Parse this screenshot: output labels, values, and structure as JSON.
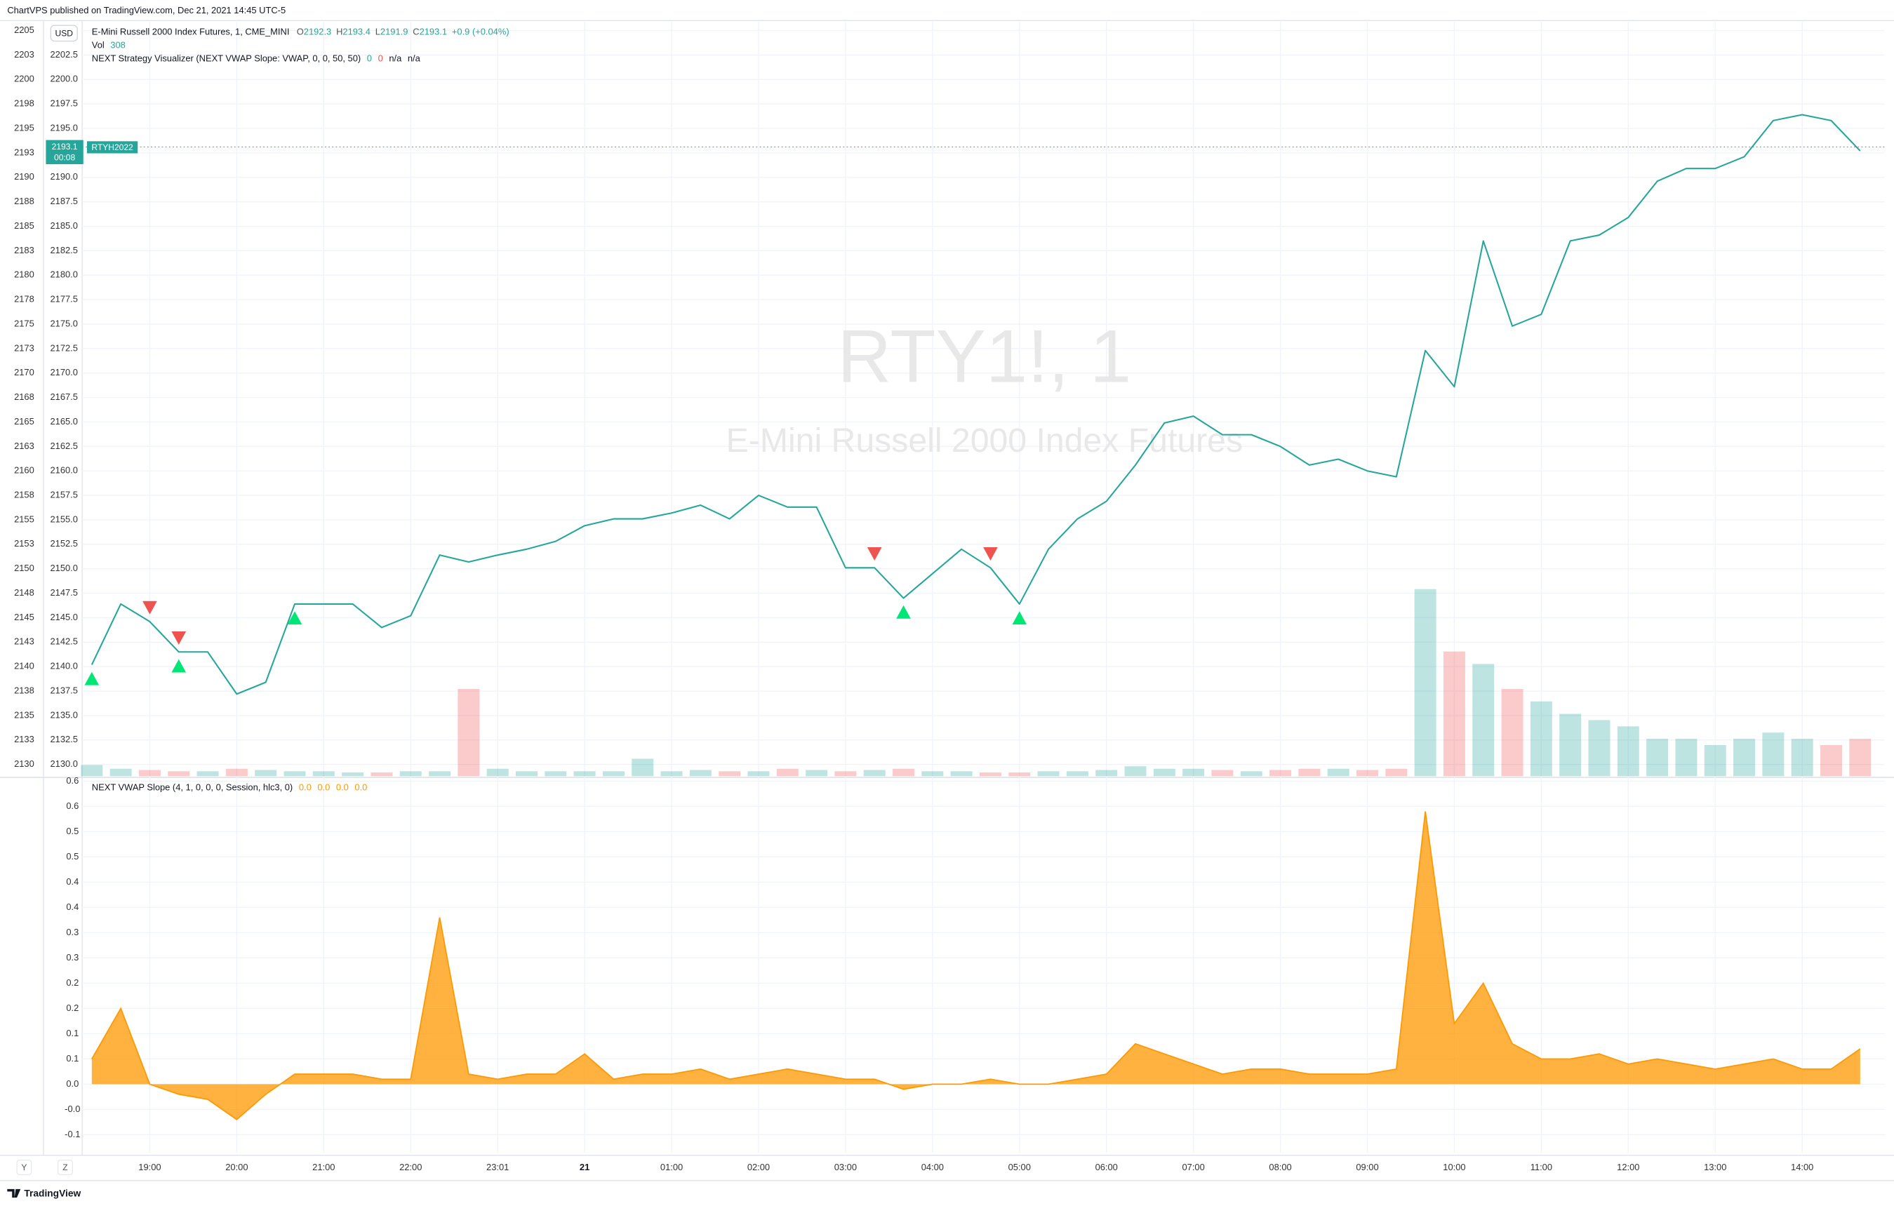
{
  "header": {
    "published": "ChartVPS published on TradingView.com, Dec 21, 2021 14:45 UTC-5"
  },
  "legend": {
    "symbol": "E-Mini Russell 2000 Index Futures, 1, CME_MINI",
    "ohlc": [
      {
        "key": "O",
        "value": 2192.3
      },
      {
        "key": "H",
        "value": 2193.4
      },
      {
        "key": "L",
        "value": 2191.9
      },
      {
        "key": "C",
        "value": 2193.1
      }
    ],
    "change": "+0.9 (+0.04%)",
    "volume_value": 308,
    "strategy": "NEXT Strategy Visualizer (NEXT VWAP Slope: VWAP, 0, 0, 50, 50)",
    "strategy_values": [
      0,
      0,
      "n/a",
      "n/a"
    ]
  },
  "currency": "USD",
  "countdown": "00:08",
  "contract": "RTYH2022",
  "watermark": {
    "symbol": "RTY1!, 1",
    "name": "E-Mini Russell 2000 Index Futures"
  },
  "chart_data": [
    {
      "type": "line",
      "categories": [
        null,
        null,
        "19:00",
        null,
        null,
        "20:00",
        null,
        null,
        "21:00",
        null,
        null,
        "22:00",
        null,
        null,
        "23:01",
        null,
        null,
        "21",
        null,
        null,
        "01:00",
        null,
        null,
        "02:00",
        null,
        null,
        "03:00",
        null,
        null,
        "04:00",
        null,
        null,
        "05:00",
        null,
        null,
        "06:00",
        null,
        null,
        "07:00",
        null,
        null,
        "08:00",
        null,
        null,
        "09:00",
        null,
        null,
        "10:00",
        null,
        null,
        "11:00",
        null,
        null,
        "12:00",
        null,
        null,
        "13:00",
        null,
        null,
        "14:00",
        null,
        null
      ],
      "series": [
        {
          "name": "RTY1!",
          "color": "#26a69a",
          "values": [
            2140.2,
            2146.4,
            2144.6,
            2141.5,
            2141.5,
            2137.2,
            2138.4,
            2146.4,
            2146.4,
            2146.4,
            2144.0,
            2145.2,
            2151.4,
            2150.7,
            2151.4,
            2152.0,
            2152.8,
            2154.4,
            2155.1,
            2155.1,
            2155.7,
            2156.5,
            2155.1,
            2157.5,
            2156.3,
            2156.3,
            2150.1,
            2150.1,
            2147.0,
            2149.5,
            2152.0,
            2150.1,
            2146.4,
            2152.0,
            2155.1,
            2156.9,
            2160.6,
            2164.9,
            2165.6,
            2163.7,
            2163.7,
            2162.5,
            2160.6,
            2161.2,
            2160.0,
            2159.4,
            2172.3,
            2168.6,
            2183.5,
            2174.8,
            2176.0,
            2183.5,
            2184.1,
            2185.9,
            2189.6,
            2190.9,
            2190.9,
            2192.1,
            2195.8,
            2196.4,
            2195.8,
            2192.7
          ]
        }
      ],
      "volume": {
        "name": "Vol",
        "up_color": "#26a69a",
        "down_color": "#ef5350",
        "values": [
          90,
          60,
          50,
          40,
          40,
          60,
          50,
          40,
          40,
          30,
          30,
          40,
          40,
          700,
          60,
          40,
          40,
          40,
          40,
          140,
          40,
          50,
          40,
          40,
          60,
          50,
          40,
          50,
          60,
          40,
          40,
          30,
          30,
          40,
          40,
          50,
          80,
          60,
          60,
          50,
          40,
          50,
          60,
          60,
          50,
          60,
          1500,
          1000,
          900,
          700,
          600,
          500,
          450,
          400,
          300,
          300,
          250,
          300,
          350,
          300,
          250,
          300
        ]
      },
      "signals": {
        "buy": [
          0,
          3,
          7,
          28,
          32
        ],
        "sell": [
          2,
          3,
          27,
          31
        ],
        "buy_color": "#00e676",
        "sell_color": "#ef5350"
      },
      "ylim": [
        2128.8,
        2205.9
      ],
      "yticks": [
        2202.5,
        {
          "value": 2200,
          "label": "2200.0"
        },
        2197.5,
        {
          "value": 2195,
          "label": "2195.0"
        },
        {
          "value": 2190,
          "label": "2190.0"
        },
        2187.5,
        {
          "value": 2185,
          "label": "2185.0"
        },
        2182.5,
        {
          "value": 2180,
          "label": "2180.0"
        },
        2177.5,
        {
          "value": 2175,
          "label": "2175.0"
        },
        2172.5,
        {
          "value": 2170,
          "label": "2170.0"
        },
        2167.5,
        {
          "value": 2165,
          "label": "2165.0"
        },
        2162.5,
        {
          "value": 2160,
          "label": "2160.0"
        },
        2157.5,
        {
          "value": 2155,
          "label": "2155.0"
        },
        2152.5,
        {
          "value": 2150,
          "label": "2150.0"
        },
        2147.5,
        {
          "value": 2145,
          "label": "2145.0"
        },
        2142.5,
        {
          "value": 2140,
          "label": "2140.0"
        },
        2137.5,
        {
          "value": 2135,
          "label": "2135.0"
        },
        2132.5,
        {
          "value": 2130,
          "label": "2130.0"
        }
      ],
      "y2lim": [
        2128.8,
        2205.9
      ],
      "y2ticks": [
        2205,
        {
          "value": 2202.5,
          "label": "2203"
        },
        2200,
        {
          "value": 2197.5,
          "label": "2198"
        },
        2195,
        {
          "value": 2192.5,
          "label": "2193"
        },
        2190,
        {
          "value": 2187.5,
          "label": "2188"
        },
        2185,
        {
          "value": 2182.5,
          "label": "2183"
        },
        2180,
        {
          "value": 2177.5,
          "label": "2178"
        },
        2175,
        {
          "value": 2172.5,
          "label": "2173"
        },
        2170,
        {
          "value": 2167.5,
          "label": "2168"
        },
        2165,
        {
          "value": 2162.5,
          "label": "2163"
        },
        2160,
        {
          "value": 2157.5,
          "label": "2158"
        },
        2155,
        {
          "value": 2152.5,
          "label": "2153"
        },
        2150,
        {
          "value": 2147.5,
          "label": "2148"
        },
        2145,
        {
          "value": 2142.5,
          "label": "2143"
        },
        2140,
        {
          "value": 2137.5,
          "label": "2138"
        },
        2135,
        {
          "value": 2132.5,
          "label": "2133"
        },
        2130
      ],
      "grid": true
    },
    {
      "type": "area",
      "title": "NEXT VWAP Slope (4, 1, 0, 0, 0, Session, hlc3, 0)",
      "legend_values": [
        {
          "value": 0,
          "label": "0.0"
        },
        {
          "value": 0,
          "label": "0.0"
        },
        {
          "value": 0,
          "label": "0.0"
        },
        {
          "value": 0,
          "label": "0.0"
        }
      ],
      "color": "#ff9800",
      "values": [
        0.05,
        0.15,
        0.0,
        -0.02,
        -0.03,
        -0.07,
        -0.02,
        0.02,
        0.02,
        0.02,
        0.01,
        0.01,
        0.33,
        0.02,
        0.01,
        0.02,
        0.02,
        0.06,
        0.01,
        0.02,
        0.02,
        0.03,
        0.01,
        0.02,
        0.03,
        0.02,
        0.01,
        0.01,
        -0.01,
        0.0,
        0.0,
        0.01,
        0.0,
        0.0,
        0.01,
        0.02,
        0.08,
        0.06,
        0.04,
        0.02,
        0.03,
        0.03,
        0.02,
        0.02,
        0.02,
        0.03,
        0.54,
        0.12,
        0.2,
        0.08,
        0.05,
        0.05,
        0.06,
        0.04,
        0.05,
        0.04,
        0.03,
        0.04,
        0.05,
        0.03,
        0.03,
        0.07
      ],
      "ylim": [
        -0.136,
        0.605
      ],
      "yticks": [
        0.6,
        {
          "value": 0.55,
          "label": "0.6"
        },
        0.5,
        {
          "value": 0.45,
          "label": "0.5"
        },
        0.4,
        {
          "value": 0.35,
          "label": "0.4"
        },
        0.3,
        {
          "value": 0.25,
          "label": "0.3"
        },
        0.2,
        {
          "value": 0.15,
          "label": "0.2"
        },
        0.1,
        {
          "value": 0.05,
          "label": "0.1"
        },
        {
          "value": 0,
          "label": "0.0"
        },
        {
          "value": -0.05,
          "label": "-0.0"
        },
        -0.1
      ],
      "grid": true
    }
  ],
  "footer": {
    "brand": "TradingView",
    "buttons": [
      "Y",
      "Z"
    ]
  }
}
